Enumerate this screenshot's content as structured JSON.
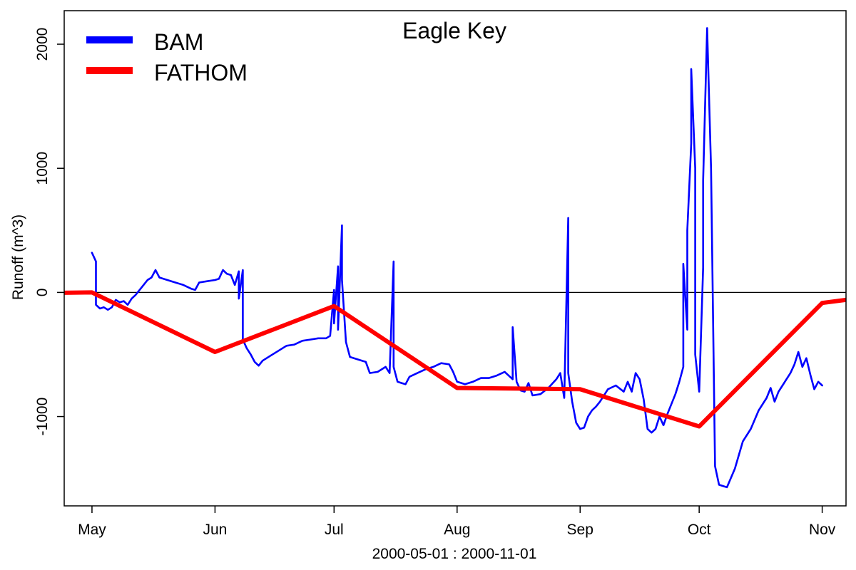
{
  "chart_data": {
    "type": "line",
    "title": "Eagle Key",
    "xlabel": "2000-05-01 : 2000-11-01",
    "ylabel": "Runoff (m^3)",
    "xlim": [
      "2000-04-24",
      "2000-11-07"
    ],
    "ylim": [
      -1720,
      2270
    ],
    "x_ticks": [
      {
        "date": "2000-05-01",
        "label": "May"
      },
      {
        "date": "2000-06-01",
        "label": "Jun"
      },
      {
        "date": "2000-07-01",
        "label": "Jul"
      },
      {
        "date": "2000-08-01",
        "label": "Aug"
      },
      {
        "date": "2000-09-01",
        "label": "Sep"
      },
      {
        "date": "2000-10-01",
        "label": "Oct"
      },
      {
        "date": "2000-11-01",
        "label": "Nov"
      }
    ],
    "y_ticks": [
      -1000,
      0,
      1000,
      2000
    ],
    "y_tick_labels": [
      "-1000",
      "0",
      "1000",
      "2000"
    ],
    "reference_line": 0,
    "legend_position": "top-left",
    "grid": false,
    "series": [
      {
        "name": "BAM",
        "color": "#0000ff",
        "points": [
          [
            "2000-05-01",
            320
          ],
          [
            "2000-05-02",
            250
          ],
          [
            "2000-05-02",
            -100
          ],
          [
            "2000-05-03",
            -130
          ],
          [
            "2000-05-04",
            -120
          ],
          [
            "2000-05-05",
            -140
          ],
          [
            "2000-05-06",
            -120
          ],
          [
            "2000-05-07",
            -60
          ],
          [
            "2000-05-08",
            -80
          ],
          [
            "2000-05-09",
            -70
          ],
          [
            "2000-05-10",
            -100
          ],
          [
            "2000-05-11",
            -50
          ],
          [
            "2000-05-12",
            -20
          ],
          [
            "2000-05-13",
            20
          ],
          [
            "2000-05-14",
            60
          ],
          [
            "2000-05-15",
            100
          ],
          [
            "2000-05-16",
            120
          ],
          [
            "2000-05-17",
            180
          ],
          [
            "2000-05-18",
            120
          ],
          [
            "2000-05-20",
            100
          ],
          [
            "2000-05-22",
            80
          ],
          [
            "2000-05-24",
            60
          ],
          [
            "2000-05-26",
            30
          ],
          [
            "2000-05-27",
            20
          ],
          [
            "2000-05-28",
            80
          ],
          [
            "2000-05-30",
            90
          ],
          [
            "2000-06-01",
            100
          ],
          [
            "2000-06-02",
            110
          ],
          [
            "2000-06-03",
            180
          ],
          [
            "2000-06-04",
            150
          ],
          [
            "2000-06-05",
            140
          ],
          [
            "2000-06-06",
            60
          ],
          [
            "2000-06-07",
            170
          ],
          [
            "2000-06-07",
            -50
          ],
          [
            "2000-06-08",
            180
          ],
          [
            "2000-06-08",
            -380
          ],
          [
            "2000-06-09",
            -450
          ],
          [
            "2000-06-10",
            -500
          ],
          [
            "2000-06-11",
            -560
          ],
          [
            "2000-06-12",
            -590
          ],
          [
            "2000-06-13",
            -550
          ],
          [
            "2000-06-15",
            -510
          ],
          [
            "2000-06-17",
            -470
          ],
          [
            "2000-06-19",
            -430
          ],
          [
            "2000-06-21",
            -420
          ],
          [
            "2000-06-23",
            -390
          ],
          [
            "2000-06-25",
            -380
          ],
          [
            "2000-06-27",
            -370
          ],
          [
            "2000-06-29",
            -370
          ],
          [
            "2000-06-30",
            -350
          ],
          [
            "2000-07-01",
            20
          ],
          [
            "2000-07-01",
            -250
          ],
          [
            "2000-07-02",
            210
          ],
          [
            "2000-07-02",
            -300
          ],
          [
            "2000-07-03",
            540
          ],
          [
            "2000-07-03",
            100
          ],
          [
            "2000-07-04",
            -400
          ],
          [
            "2000-07-05",
            -520
          ],
          [
            "2000-07-07",
            -540
          ],
          [
            "2000-07-09",
            -560
          ],
          [
            "2000-07-10",
            -650
          ],
          [
            "2000-07-12",
            -640
          ],
          [
            "2000-07-14",
            -600
          ],
          [
            "2000-07-15",
            -650
          ],
          [
            "2000-07-16",
            250
          ],
          [
            "2000-07-16",
            -600
          ],
          [
            "2000-07-17",
            -720
          ],
          [
            "2000-07-18",
            -730
          ],
          [
            "2000-07-19",
            -740
          ],
          [
            "2000-07-20",
            -680
          ],
          [
            "2000-07-22",
            -650
          ],
          [
            "2000-07-24",
            -620
          ],
          [
            "2000-07-26",
            -600
          ],
          [
            "2000-07-28",
            -570
          ],
          [
            "2000-07-30",
            -580
          ],
          [
            "2000-07-31",
            -640
          ],
          [
            "2000-08-01",
            -720
          ],
          [
            "2000-08-03",
            -740
          ],
          [
            "2000-08-05",
            -720
          ],
          [
            "2000-08-07",
            -690
          ],
          [
            "2000-08-09",
            -690
          ],
          [
            "2000-08-11",
            -670
          ],
          [
            "2000-08-13",
            -640
          ],
          [
            "2000-08-15",
            -700
          ],
          [
            "2000-08-15",
            -280
          ],
          [
            "2000-08-16",
            -720
          ],
          [
            "2000-08-17",
            -790
          ],
          [
            "2000-08-18",
            -800
          ],
          [
            "2000-08-19",
            -730
          ],
          [
            "2000-08-20",
            -830
          ],
          [
            "2000-08-22",
            -820
          ],
          [
            "2000-08-24",
            -770
          ],
          [
            "2000-08-26",
            -700
          ],
          [
            "2000-08-27",
            -650
          ],
          [
            "2000-08-28",
            -850
          ],
          [
            "2000-08-29",
            600
          ],
          [
            "2000-08-29",
            -650
          ],
          [
            "2000-08-30",
            -880
          ],
          [
            "2000-08-31",
            -1050
          ],
          [
            "2000-09-01",
            -1100
          ],
          [
            "2000-09-02",
            -1090
          ],
          [
            "2000-09-03",
            -1000
          ],
          [
            "2000-09-04",
            -950
          ],
          [
            "2000-09-05",
            -920
          ],
          [
            "2000-09-06",
            -880
          ],
          [
            "2000-09-08",
            -780
          ],
          [
            "2000-09-10",
            -750
          ],
          [
            "2000-09-12",
            -800
          ],
          [
            "2000-09-13",
            -720
          ],
          [
            "2000-09-14",
            -800
          ],
          [
            "2000-09-15",
            -650
          ],
          [
            "2000-09-16",
            -700
          ],
          [
            "2000-09-17",
            -860
          ],
          [
            "2000-09-18",
            -1100
          ],
          [
            "2000-09-19",
            -1130
          ],
          [
            "2000-09-20",
            -1100
          ],
          [
            "2000-09-21",
            -1000
          ],
          [
            "2000-09-22",
            -1070
          ],
          [
            "2000-09-23",
            -980
          ],
          [
            "2000-09-24",
            -900
          ],
          [
            "2000-09-25",
            -820
          ],
          [
            "2000-09-26",
            -720
          ],
          [
            "2000-09-27",
            -600
          ],
          [
            "2000-09-27",
            230
          ],
          [
            "2000-09-28",
            -300
          ],
          [
            "2000-09-28",
            500
          ],
          [
            "2000-09-29",
            1200
          ],
          [
            "2000-09-29",
            1800
          ],
          [
            "2000-09-30",
            1000
          ],
          [
            "2000-09-30",
            -500
          ],
          [
            "2000-10-01",
            -800
          ],
          [
            "2000-10-02",
            200
          ],
          [
            "2000-10-02",
            900
          ],
          [
            "2000-10-03",
            2130
          ],
          [
            "2000-10-04",
            1000
          ],
          [
            "2000-10-05",
            -1400
          ],
          [
            "2000-10-06",
            -1550
          ],
          [
            "2000-10-08",
            -1570
          ],
          [
            "2000-10-10",
            -1420
          ],
          [
            "2000-10-12",
            -1200
          ],
          [
            "2000-10-14",
            -1100
          ],
          [
            "2000-10-16",
            -950
          ],
          [
            "2000-10-18",
            -850
          ],
          [
            "2000-10-19",
            -770
          ],
          [
            "2000-10-20",
            -880
          ],
          [
            "2000-10-21",
            -800
          ],
          [
            "2000-10-22",
            -750
          ],
          [
            "2000-10-23",
            -700
          ],
          [
            "2000-10-24",
            -650
          ],
          [
            "2000-10-25",
            -580
          ],
          [
            "2000-10-26",
            -480
          ],
          [
            "2000-10-27",
            -600
          ],
          [
            "2000-10-28",
            -530
          ],
          [
            "2000-10-29",
            -660
          ],
          [
            "2000-10-30",
            -780
          ],
          [
            "2000-10-31",
            -720
          ],
          [
            "2000-11-01",
            -750
          ]
        ]
      },
      {
        "name": "FATHOM",
        "color": "#ff0000",
        "points": [
          [
            "2000-04-24",
            -3
          ],
          [
            "2000-05-01",
            0
          ],
          [
            "2000-06-01",
            -480
          ],
          [
            "2000-07-01",
            -110
          ],
          [
            "2000-08-01",
            -770
          ],
          [
            "2000-09-01",
            -780
          ],
          [
            "2000-10-01",
            -1080
          ],
          [
            "2000-11-01",
            -85
          ],
          [
            "2000-11-07",
            -60
          ]
        ]
      }
    ]
  }
}
